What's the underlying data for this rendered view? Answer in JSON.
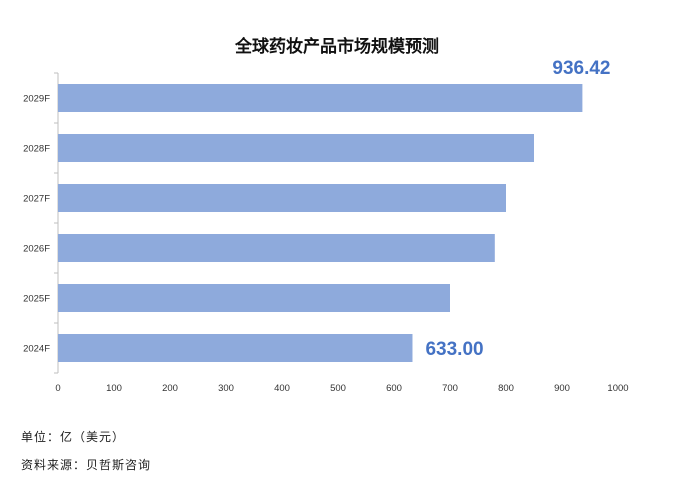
{
  "chart_data": {
    "type": "bar",
    "orientation": "horizontal",
    "title": "全球药妆产品市场规模预测",
    "categories": [
      "2029F",
      "2028F",
      "2027F",
      "2026F",
      "2025F",
      "2024F"
    ],
    "values": [
      936.42,
      850,
      800,
      780,
      700,
      633.0
    ],
    "data_labels": {
      "2029F": "936.42",
      "2024F": "633.00"
    },
    "xlim": [
      0,
      1000
    ],
    "xticks": [
      0,
      100,
      200,
      300,
      400,
      500,
      600,
      700,
      800,
      900,
      1000
    ],
    "grid": false,
    "bar_color": "#8eaadc",
    "label_color": "#4472c4"
  },
  "footnotes": {
    "unit": "单位：亿（美元）",
    "source": "资料来源：贝哲斯咨询"
  }
}
